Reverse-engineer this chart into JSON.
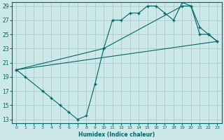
{
  "xlabel": "Humidex (Indice chaleur)",
  "ylabel": "",
  "xlim": [
    -0.5,
    23.5
  ],
  "ylim": [
    12.5,
    29.5
  ],
  "xticks": [
    0,
    1,
    2,
    3,
    4,
    5,
    6,
    7,
    8,
    9,
    10,
    11,
    12,
    13,
    14,
    15,
    16,
    17,
    18,
    19,
    20,
    21,
    22,
    23
  ],
  "yticks": [
    13,
    15,
    17,
    19,
    21,
    23,
    25,
    27,
    29
  ],
  "bg_color": "#cce8e8",
  "grid_color": "#aacccc",
  "line_color": "#006666",
  "line1_x": [
    0,
    1,
    3,
    4,
    5,
    6,
    7,
    8,
    9,
    10,
    11,
    12,
    13,
    14,
    15,
    16,
    17,
    18,
    19,
    20,
    21,
    22,
    23
  ],
  "line1_y": [
    20,
    19,
    17,
    16,
    15,
    14,
    13,
    13.5,
    18,
    23,
    27,
    27,
    28,
    28,
    29,
    29,
    28,
    27,
    29.5,
    29,
    25,
    25,
    24
  ],
  "line2_x": [
    0,
    10,
    19,
    20,
    21,
    22,
    23
  ],
  "line2_y": [
    20,
    23,
    29,
    29,
    26,
    25,
    24
  ],
  "line3_x": [
    0,
    23
  ],
  "line3_y": [
    20,
    24
  ]
}
